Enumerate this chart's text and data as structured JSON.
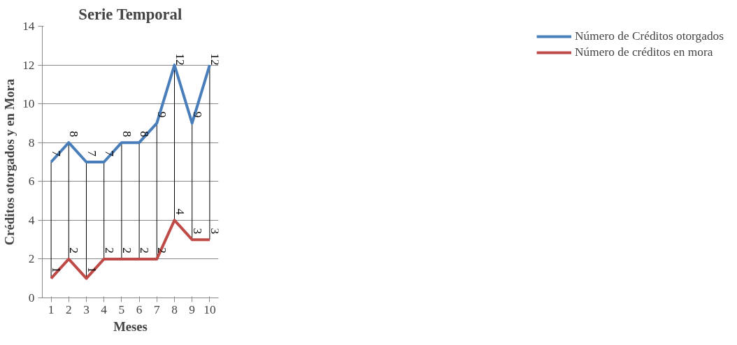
{
  "chart_data": {
    "type": "line",
    "title": "Serie Temporal",
    "xlabel": "Meses",
    "ylabel": "Créditos otorgados y en Mora",
    "categories": [
      "1",
      "2",
      "3",
      "4",
      "5",
      "6",
      "7",
      "8",
      "9",
      "10"
    ],
    "series": [
      {
        "name": "Número de Créditos otorgados",
        "color": "#4a7ebb",
        "values": [
          7,
          8,
          7,
          7,
          8,
          8,
          9,
          12,
          9,
          12
        ]
      },
      {
        "name": "Número de créditos en mora",
        "color": "#be4b48",
        "values": [
          1,
          2,
          1,
          2,
          2,
          2,
          2,
          4,
          3,
          3
        ]
      }
    ],
    "ylim": [
      0,
      14
    ],
    "yticks": [
      0,
      2,
      4,
      6,
      8,
      10,
      12,
      14
    ],
    "grid": "y",
    "legend": "right",
    "data_labels": true,
    "marker": "none",
    "line_style": "solid"
  }
}
